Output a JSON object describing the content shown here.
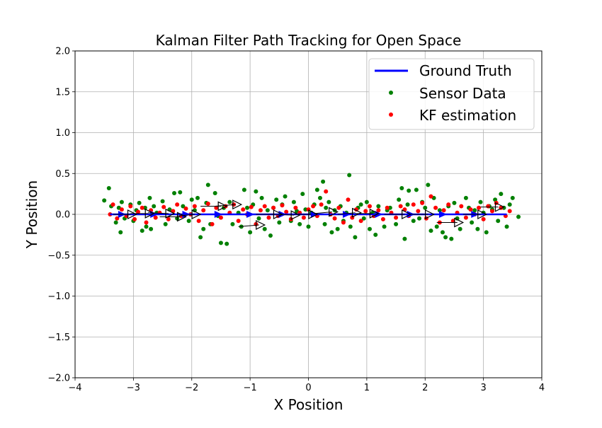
{
  "chart_data": {
    "type": "scatter",
    "title": "Kalman Filter Path Tracking for Open Space",
    "xlabel": "X Position",
    "ylabel": "Y Position",
    "xlim": [
      -4,
      4
    ],
    "ylim": [
      -2,
      2
    ],
    "grid": true,
    "legend_position": "top-right",
    "x_ticks": [
      -4,
      -3,
      -2,
      -1,
      0,
      1,
      2,
      3,
      4
    ],
    "x_tick_labels": [
      "−4",
      "−3",
      "−2",
      "−1",
      "0",
      "1",
      "2",
      "3",
      "4"
    ],
    "y_ticks": [
      -2.0,
      -1.5,
      -1.0,
      -0.5,
      0.0,
      0.5,
      1.0,
      1.5,
      2.0
    ],
    "y_tick_labels": [
      "−2.0",
      "−1.5",
      "−1.0",
      "−0.5",
      "0.0",
      "0.5",
      "1.0",
      "1.5",
      "2.0"
    ],
    "series": [
      {
        "name": "Ground Truth",
        "kind": "line",
        "color": "#0000ff",
        "x": [
          -3.4,
          3.4
        ],
        "y": [
          0.0,
          0.0
        ]
      },
      {
        "name": "Sensor Data",
        "kind": "scatter",
        "color": "#008000",
        "x": [
          -3.5,
          -3.42,
          -3.38,
          -3.3,
          -3.25,
          -3.22,
          -3.2,
          -3.15,
          -3.05,
          -3.0,
          -2.95,
          -2.9,
          -2.85,
          -2.8,
          -2.78,
          -2.72,
          -2.7,
          -2.65,
          -2.6,
          -2.5,
          -2.45,
          -2.38,
          -2.3,
          -2.25,
          -2.2,
          -2.15,
          -2.05,
          -2.0,
          -1.95,
          -1.9,
          -1.85,
          -1.8,
          -1.75,
          -1.72,
          -1.68,
          -1.6,
          -1.55,
          -1.5,
          -1.45,
          -1.4,
          -1.35,
          -1.3,
          -1.2,
          -1.15,
          -1.1,
          -1.05,
          -1.0,
          -0.95,
          -0.9,
          -0.85,
          -0.8,
          -0.75,
          -0.7,
          -0.65,
          -0.6,
          -0.55,
          -0.5,
          -0.45,
          -0.4,
          -0.3,
          -0.25,
          -0.2,
          -0.15,
          -0.1,
          -0.05,
          0.0,
          0.05,
          0.1,
          0.15,
          0.2,
          0.25,
          0.28,
          0.3,
          0.35,
          0.4,
          0.45,
          0.5,
          0.55,
          0.6,
          0.65,
          0.7,
          0.72,
          0.8,
          0.85,
          0.9,
          0.95,
          1.0,
          1.05,
          1.1,
          1.15,
          1.2,
          1.3,
          1.35,
          1.4,
          1.5,
          1.55,
          1.6,
          1.65,
          1.7,
          1.72,
          1.8,
          1.85,
          1.9,
          1.95,
          2.0,
          2.05,
          2.1,
          2.15,
          2.2,
          2.25,
          2.3,
          2.35,
          2.4,
          2.45,
          2.5,
          2.55,
          2.6,
          2.7,
          2.75,
          2.8,
          2.85,
          2.9,
          2.95,
          3.0,
          3.05,
          3.1,
          3.15,
          3.2,
          3.25,
          3.3,
          3.35,
          3.4,
          3.45,
          3.5,
          3.6
        ],
        "y": [
          0.17,
          0.32,
          0.1,
          -0.1,
          0.08,
          -0.22,
          0.15,
          -0.05,
          0.12,
          -0.08,
          0.05,
          0.14,
          -0.2,
          0.08,
          -0.15,
          0.2,
          -0.18,
          0.1,
          0.02,
          0.16,
          -0.12,
          0.06,
          0.26,
          -0.05,
          0.27,
          0.1,
          -0.08,
          0.18,
          0.05,
          0.2,
          -0.28,
          -0.18,
          0.14,
          0.36,
          -0.12,
          0.26,
          -0.02,
          -0.35,
          0.08,
          -0.36,
          0.15,
          -0.12,
          0.02,
          -0.15,
          0.3,
          0.08,
          -0.22,
          0.12,
          0.28,
          -0.05,
          0.2,
          -0.18,
          0.05,
          -0.26,
          0.08,
          0.18,
          -0.1,
          0.12,
          0.22,
          -0.08,
          0.15,
          0.04,
          -0.12,
          0.25,
          0.06,
          -0.15,
          0.02,
          0.12,
          0.3,
          0.2,
          0.4,
          -0.12,
          0.08,
          0.15,
          -0.22,
          0.05,
          -0.18,
          0.1,
          -0.08,
          0.02,
          0.48,
          -0.15,
          -0.28,
          0.08,
          0.12,
          -0.05,
          0.15,
          -0.18,
          0.02,
          -0.25,
          0.1,
          -0.15,
          0.05,
          0.08,
          -0.12,
          0.18,
          0.32,
          -0.3,
          0.12,
          0.29,
          -0.08,
          0.3,
          -0.05,
          0.15,
          0.08,
          0.36,
          -0.2,
          0.2,
          -0.15,
          0.05,
          -0.22,
          -0.28,
          0.1,
          -0.3,
          0.14,
          -0.05,
          -0.18,
          0.2,
          0.08,
          -0.1,
          0.05,
          -0.18,
          0.15,
          0.02,
          -0.22,
          0.1,
          0.06,
          0.18,
          -0.08,
          0.25,
          0.08,
          -0.15,
          0.12,
          0.2,
          -0.03
        ]
      },
      {
        "name": "KF estimation",
        "kind": "scatter",
        "color": "#ff0000",
        "x": [
          -3.4,
          -3.35,
          -3.28,
          -3.2,
          -3.12,
          -3.05,
          -2.98,
          -2.92,
          -2.85,
          -2.78,
          -2.7,
          -2.62,
          -2.55,
          -2.48,
          -2.4,
          -2.32,
          -2.25,
          -2.18,
          -2.1,
          -2.02,
          -1.95,
          -1.88,
          -1.8,
          -1.72,
          -1.65,
          -1.58,
          -1.5,
          -1.42,
          -1.35,
          -1.28,
          -1.2,
          -1.12,
          -1.05,
          -0.98,
          -0.9,
          -0.82,
          -0.75,
          -0.68,
          -0.6,
          -0.52,
          -0.45,
          -0.38,
          -0.3,
          -0.22,
          -0.15,
          -0.08,
          0.0,
          0.08,
          0.15,
          0.22,
          0.3,
          0.38,
          0.45,
          0.52,
          0.6,
          0.68,
          0.75,
          0.82,
          0.9,
          0.98,
          1.05,
          1.12,
          1.2,
          1.28,
          1.35,
          1.42,
          1.5,
          1.58,
          1.65,
          1.72,
          1.8,
          1.88,
          1.95,
          2.02,
          2.1,
          2.18,
          2.25,
          2.32,
          2.4,
          2.48,
          2.55,
          2.62,
          2.7,
          2.78,
          2.85,
          2.92,
          3.0,
          3.08,
          3.15,
          3.22,
          3.3,
          3.38,
          3.45
        ],
        "y": [
          0.0,
          0.12,
          -0.05,
          0.06,
          -0.02,
          0.1,
          -0.06,
          0.03,
          0.08,
          -0.1,
          0.05,
          -0.04,
          0.02,
          0.09,
          -0.06,
          0.04,
          0.12,
          -0.02,
          0.07,
          0.0,
          0.1,
          -0.08,
          0.05,
          0.13,
          -0.12,
          0.08,
          -0.04,
          0.1,
          0.02,
          0.12,
          -0.08,
          0.06,
          0.0,
          0.09,
          -0.12,
          0.05,
          0.1,
          -0.04,
          0.08,
          -0.02,
          0.11,
          0.03,
          -0.06,
          0.08,
          0.02,
          -0.04,
          0.06,
          0.1,
          -0.02,
          0.12,
          0.28,
          0.0,
          -0.05,
          0.08,
          -0.1,
          0.18,
          -0.04,
          0.06,
          -0.08,
          0.04,
          0.1,
          -0.02,
          0.05,
          -0.06,
          0.08,
          0.02,
          -0.04,
          0.1,
          0.06,
          -0.02,
          0.12,
          0.04,
          0.14,
          -0.05,
          0.22,
          0.08,
          -0.1,
          0.05,
          0.12,
          -0.08,
          0.02,
          0.1,
          -0.04,
          0.06,
          0.0,
          0.08,
          -0.06,
          0.1,
          0.04,
          0.14,
          0.08,
          -0.02,
          0.04
        ]
      }
    ],
    "annotations": {
      "arrows": [
        {
          "x": -3.35,
          "y": 0.0,
          "dx": 0.4,
          "dy": 0.0
        },
        {
          "x": -3.05,
          "y": 0.01,
          "dx": 0.4,
          "dy": 0.0
        },
        {
          "x": -2.75,
          "y": 0.02,
          "dx": 0.45,
          "dy": -0.01
        },
        {
          "x": -2.55,
          "y": -0.03,
          "dx": 0.45,
          "dy": 0.0
        },
        {
          "x": -2.25,
          "y": -0.02,
          "dx": 0.4,
          "dy": 0.02
        },
        {
          "x": -1.85,
          "y": 0.1,
          "dx": 0.45,
          "dy": 0.0
        },
        {
          "x": -1.6,
          "y": 0.1,
          "dx": 0.45,
          "dy": 0.02
        },
        {
          "x": -1.2,
          "y": -0.15,
          "dx": 0.45,
          "dy": 0.02
        },
        {
          "x": -0.9,
          "y": 0.0,
          "dx": 0.45,
          "dy": 0.0
        },
        {
          "x": -0.55,
          "y": 0.0,
          "dx": 0.4,
          "dy": -0.01
        },
        {
          "x": -0.25,
          "y": 0.0,
          "dx": 0.4,
          "dy": 0.0
        },
        {
          "x": 0.1,
          "y": 0.01,
          "dx": 0.4,
          "dy": 0.02
        },
        {
          "x": 0.5,
          "y": 0.0,
          "dx": 0.4,
          "dy": 0.02
        },
        {
          "x": 0.8,
          "y": 0.01,
          "dx": 0.4,
          "dy": 0.0
        },
        {
          "x": 1.3,
          "y": 0.0,
          "dx": 0.45,
          "dy": 0.0
        },
        {
          "x": 1.75,
          "y": 0.0,
          "dx": 0.4,
          "dy": 0.0
        },
        {
          "x": 2.2,
          "y": -0.1,
          "dx": 0.45,
          "dy": 0.0
        },
        {
          "x": 2.65,
          "y": 0.0,
          "dx": 0.4,
          "dy": 0.0
        },
        {
          "x": 2.95,
          "y": 0.09,
          "dx": 0.4,
          "dy": 0.0
        }
      ],
      "arrow_color": "#000000"
    }
  }
}
